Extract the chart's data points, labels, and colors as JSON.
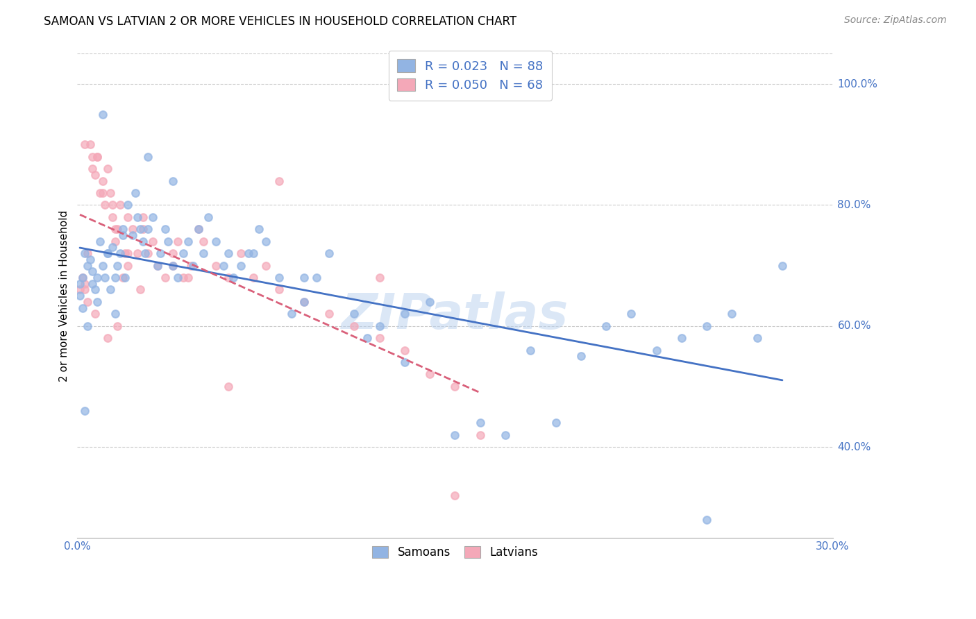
{
  "title": "SAMOAN VS LATVIAN 2 OR MORE VEHICLES IN HOUSEHOLD CORRELATION CHART",
  "source": "Source: ZipAtlas.com",
  "ylabel": "2 or more Vehicles in Household",
  "xlim": [
    0.0,
    0.3
  ],
  "ylim": [
    0.25,
    1.05
  ],
  "legend_label1": "R = 0.023   N = 88",
  "legend_label2": "R = 0.050   N = 68",
  "legend_label_bottom1": "Samoans",
  "legend_label_bottom2": "Latvians",
  "samoan_color": "#92b4e3",
  "latvian_color": "#f4a8b8",
  "trendline_samoan_color": "#4472c4",
  "trendline_latvian_color": "#d9607a",
  "watermark": "ZIPatlas",
  "samoan_x": [
    0.001,
    0.002,
    0.003,
    0.004,
    0.005,
    0.006,
    0.007,
    0.008,
    0.009,
    0.01,
    0.011,
    0.012,
    0.013,
    0.014,
    0.015,
    0.016,
    0.017,
    0.018,
    0.019,
    0.02,
    0.022,
    0.023,
    0.024,
    0.025,
    0.026,
    0.027,
    0.028,
    0.03,
    0.032,
    0.033,
    0.035,
    0.036,
    0.038,
    0.04,
    0.042,
    0.044,
    0.046,
    0.048,
    0.05,
    0.055,
    0.058,
    0.06,
    0.062,
    0.065,
    0.068,
    0.072,
    0.075,
    0.08,
    0.085,
    0.09,
    0.095,
    0.1,
    0.11,
    0.115,
    0.12,
    0.13,
    0.14,
    0.15,
    0.16,
    0.17,
    0.18,
    0.19,
    0.2,
    0.21,
    0.22,
    0.23,
    0.24,
    0.25,
    0.26,
    0.27,
    0.003,
    0.008,
    0.012,
    0.018,
    0.028,
    0.038,
    0.052,
    0.07,
    0.09,
    0.13,
    0.25,
    0.28,
    0.001,
    0.002,
    0.004,
    0.006,
    0.01,
    0.015
  ],
  "samoan_y": [
    0.67,
    0.68,
    0.72,
    0.7,
    0.71,
    0.69,
    0.66,
    0.68,
    0.74,
    0.7,
    0.68,
    0.72,
    0.66,
    0.73,
    0.68,
    0.7,
    0.72,
    0.75,
    0.68,
    0.8,
    0.75,
    0.82,
    0.78,
    0.76,
    0.74,
    0.72,
    0.76,
    0.78,
    0.7,
    0.72,
    0.76,
    0.74,
    0.7,
    0.68,
    0.72,
    0.74,
    0.7,
    0.76,
    0.72,
    0.74,
    0.7,
    0.72,
    0.68,
    0.7,
    0.72,
    0.76,
    0.74,
    0.68,
    0.62,
    0.64,
    0.68,
    0.72,
    0.62,
    0.58,
    0.6,
    0.62,
    0.64,
    0.42,
    0.44,
    0.42,
    0.56,
    0.44,
    0.55,
    0.6,
    0.62,
    0.56,
    0.58,
    0.6,
    0.62,
    0.58,
    0.46,
    0.64,
    0.72,
    0.76,
    0.88,
    0.84,
    0.78,
    0.72,
    0.68,
    0.54,
    0.28,
    0.7,
    0.65,
    0.63,
    0.6,
    0.67,
    0.95,
    0.62
  ],
  "latvian_x": [
    0.001,
    0.002,
    0.003,
    0.004,
    0.005,
    0.006,
    0.007,
    0.008,
    0.009,
    0.01,
    0.011,
    0.012,
    0.013,
    0.014,
    0.015,
    0.016,
    0.017,
    0.018,
    0.019,
    0.02,
    0.022,
    0.024,
    0.026,
    0.028,
    0.03,
    0.032,
    0.035,
    0.038,
    0.04,
    0.042,
    0.045,
    0.048,
    0.05,
    0.055,
    0.06,
    0.065,
    0.07,
    0.075,
    0.08,
    0.09,
    0.1,
    0.11,
    0.12,
    0.13,
    0.14,
    0.15,
    0.16,
    0.003,
    0.008,
    0.014,
    0.02,
    0.026,
    0.038,
    0.044,
    0.06,
    0.08,
    0.12,
    0.15,
    0.003,
    0.006,
    0.01,
    0.015,
    0.02,
    0.025,
    0.004,
    0.007,
    0.012,
    0.016
  ],
  "latvian_y": [
    0.66,
    0.68,
    0.67,
    0.72,
    0.9,
    0.88,
    0.85,
    0.88,
    0.82,
    0.84,
    0.8,
    0.86,
    0.82,
    0.78,
    0.74,
    0.76,
    0.8,
    0.68,
    0.72,
    0.7,
    0.76,
    0.72,
    0.78,
    0.72,
    0.74,
    0.7,
    0.68,
    0.72,
    0.74,
    0.68,
    0.7,
    0.76,
    0.74,
    0.7,
    0.68,
    0.72,
    0.68,
    0.7,
    0.66,
    0.64,
    0.62,
    0.6,
    0.58,
    0.56,
    0.52,
    0.5,
    0.42,
    0.66,
    0.88,
    0.8,
    0.78,
    0.76,
    0.7,
    0.68,
    0.5,
    0.84,
    0.68,
    0.32,
    0.9,
    0.86,
    0.82,
    0.76,
    0.72,
    0.66,
    0.64,
    0.62,
    0.58,
    0.6
  ],
  "samoan_marker_size": 60,
  "latvian_marker_size": 60
}
